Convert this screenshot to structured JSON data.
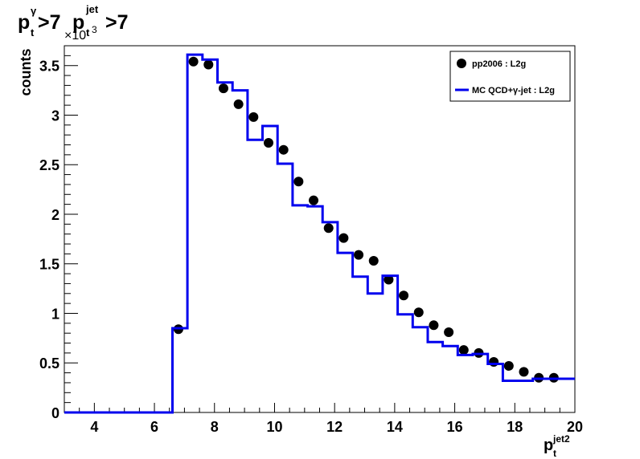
{
  "header": {
    "cut": ">7",
    "pt_sym": "p",
    "pt_sub": "t",
    "gamma_sup": "γ",
    "jet_sup": "jet",
    "jet_sub": "t",
    "scale_prefix": "×10",
    "scale_exp": "3"
  },
  "axes": {
    "ylabel": "counts",
    "xlabel_base": "p",
    "xlabel_sup": "jet2",
    "xlabel_sub": "t"
  },
  "legend": {
    "placement": "top-right",
    "entries": [
      {
        "label": "pp2006 : L2g",
        "style": "marker"
      },
      {
        "label": "MC QCD+γ-jet : L2g",
        "style": "line"
      }
    ]
  },
  "chart_data": {
    "type": "line",
    "xlim": [
      3,
      20
    ],
    "ylim": [
      0,
      3.7
    ],
    "y_scale_factor": "×10^3",
    "xticks": [
      4,
      6,
      8,
      10,
      12,
      14,
      16,
      18,
      20
    ],
    "yticks": [
      0,
      0.5,
      1,
      1.5,
      2,
      2.5,
      3,
      3.5
    ],
    "ytick_labels": [
      "0",
      "0.5",
      "1",
      "1.5",
      "2",
      "2.5",
      "3",
      "3.5"
    ],
    "grid": false,
    "series": [
      {
        "name": "pp2006 : L2g",
        "kind": "markers",
        "color": "#000000",
        "x": [
          6.8,
          7.3,
          7.8,
          8.3,
          8.8,
          9.3,
          9.8,
          10.3,
          10.8,
          11.3,
          11.8,
          12.3,
          12.8,
          13.3,
          13.8,
          14.3,
          14.8,
          15.3,
          15.8,
          16.3,
          16.8,
          17.3,
          17.8,
          18.3,
          18.8,
          19.3
        ],
        "y": [
          0.84,
          3.54,
          3.51,
          3.27,
          3.11,
          2.98,
          2.72,
          2.65,
          2.33,
          2.14,
          1.86,
          1.76,
          1.59,
          1.53,
          1.34,
          1.18,
          1.01,
          0.88,
          0.81,
          0.63,
          0.6,
          0.51,
          0.47,
          0.41,
          0.35,
          0.35
        ]
      },
      {
        "name": "MC QCD+γ-jet : L2g",
        "kind": "step",
        "color": "#0000ee",
        "edges": [
          3.0,
          6.6,
          7.1,
          7.6,
          8.1,
          8.6,
          9.1,
          9.6,
          10.1,
          10.6,
          11.1,
          11.6,
          12.1,
          12.6,
          13.1,
          13.6,
          14.1,
          14.6,
          15.1,
          15.6,
          16.1,
          16.6,
          17.1,
          17.6,
          18.1,
          18.6,
          19.1,
          19.6,
          20.0
        ],
        "values": [
          0.0,
          0.85,
          3.61,
          3.56,
          3.33,
          3.25,
          2.75,
          2.89,
          2.51,
          2.09,
          2.08,
          1.92,
          1.61,
          1.37,
          1.2,
          1.38,
          0.99,
          0.86,
          0.71,
          0.67,
          0.58,
          0.59,
          0.49,
          0.32,
          0.32,
          0.34,
          0.34,
          0.34
        ]
      }
    ]
  }
}
